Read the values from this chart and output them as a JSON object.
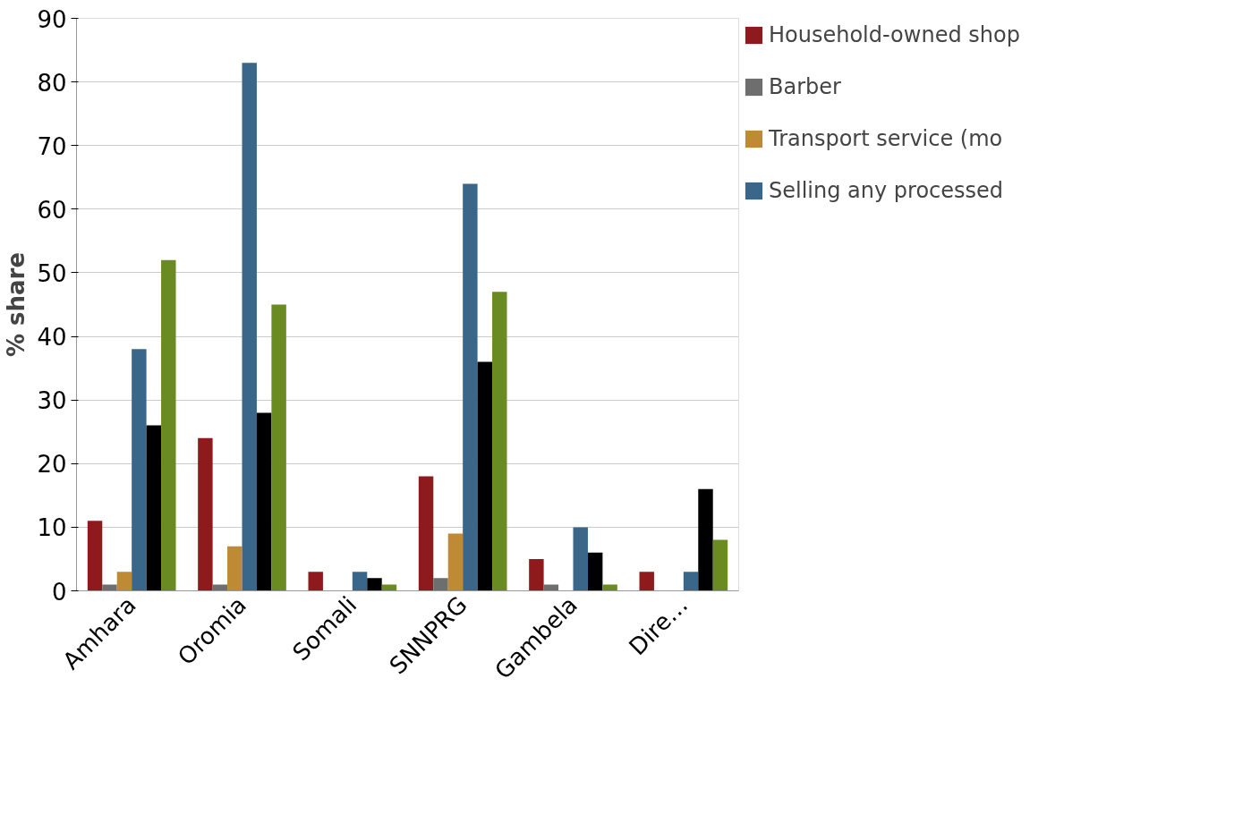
{
  "chart_data": {
    "type": "bar",
    "ylabel": "% share",
    "categories": [
      "Amhara",
      "Oromia",
      "Somali",
      "SNNPRG",
      "Gambela",
      "Dire…"
    ],
    "series": [
      {
        "name": "Household-owned shop",
        "color": "#8e1a1d",
        "values": [
          11,
          24,
          3,
          18,
          5,
          3
        ]
      },
      {
        "name": "Barber",
        "color": "#6e6e6e",
        "values": [
          1,
          1,
          0,
          2,
          1,
          0
        ]
      },
      {
        "name": "Transport service (mo",
        "color": "#be8a33",
        "values": [
          3,
          7,
          0,
          9,
          0,
          0
        ]
      },
      {
        "name": "Selling any processed",
        "color": "#3a6789",
        "values": [
          38,
          83,
          3,
          64,
          10,
          3
        ]
      },
      {
        "color": "#000000",
        "values": [
          26,
          28,
          2,
          36,
          6,
          16
        ]
      },
      {
        "color": "#6a8a22",
        "values": [
          52,
          45,
          1,
          47,
          1,
          8
        ]
      }
    ],
    "ylim": [
      0,
      90
    ],
    "yticks": [
      0,
      10,
      20,
      30,
      40,
      50,
      60,
      70,
      80,
      90
    ],
    "grid": "y",
    "legend": "right"
  }
}
